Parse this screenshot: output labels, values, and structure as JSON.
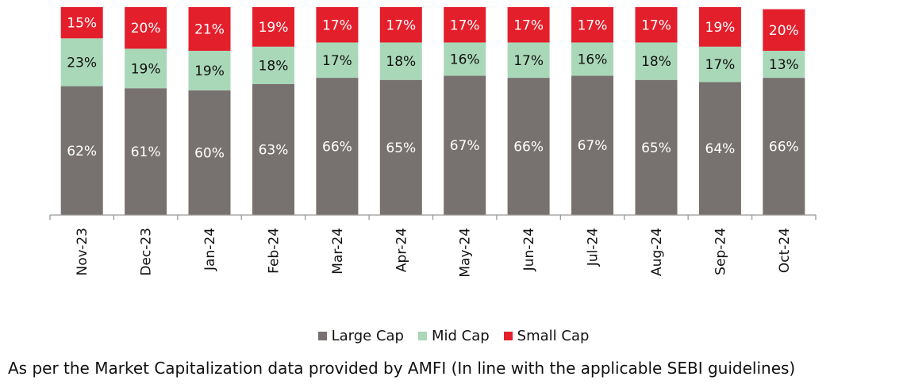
{
  "chart_data": {
    "type": "bar",
    "stacked": true,
    "categories": [
      "Nov-23",
      "Dec-23",
      "Jan-24",
      "Feb-24",
      "Mar-24",
      "Apr-24",
      "May-24",
      "Jun-24",
      "Jul-24",
      "Aug-24",
      "Sep-24",
      "Oct-24"
    ],
    "series": [
      {
        "name": "Large Cap",
        "color": "#77726f",
        "label_color": "#ffffff",
        "values": [
          62,
          61,
          60,
          63,
          66,
          65,
          67,
          66,
          67,
          65,
          64,
          66
        ],
        "labels": [
          "62%",
          "61%",
          "60%",
          "63%",
          "66%",
          "65%",
          "67%",
          "66%",
          "67%",
          "65%",
          "64%",
          "66%"
        ]
      },
      {
        "name": "Mid Cap",
        "color": "#a9d8b8",
        "label_color": "#111111",
        "values": [
          23,
          19,
          19,
          18,
          17,
          18,
          16,
          17,
          16,
          18,
          17,
          13
        ],
        "labels": [
          "23%",
          "19%",
          "19%",
          "18%",
          "17%",
          "18%",
          "16%",
          "17%",
          "16%",
          "18%",
          "17%",
          "13%"
        ]
      },
      {
        "name": "Small Cap",
        "color": "#e41f2c",
        "label_color": "#ffffff",
        "values": [
          15,
          20,
          21,
          19,
          17,
          17,
          17,
          17,
          17,
          17,
          19,
          20
        ],
        "labels": [
          "15%",
          "20%",
          "21%",
          "19%",
          "17%",
          "17%",
          "17%",
          "17%",
          "17%",
          "17%",
          "19%",
          "20%"
        ]
      }
    ],
    "ylim": [
      0,
      100
    ],
    "grid": false,
    "legend_position": "bottom"
  },
  "footnote": "As per the Market Capitalization data provided by AMFI (In line with the applicable SEBI guidelines)"
}
